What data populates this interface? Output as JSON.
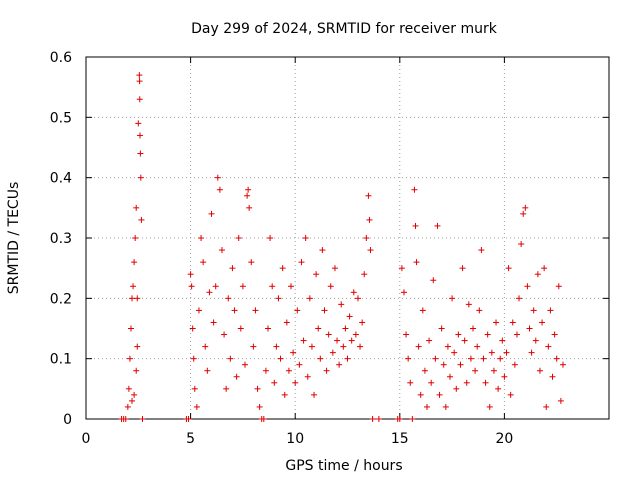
{
  "chart_data": {
    "type": "scatter",
    "title": "Day 299 of 2024, SRMTID for receiver murk",
    "xlabel": "GPS time / hours",
    "ylabel": "SRMTID / TECUs",
    "xlim": [
      0,
      25
    ],
    "ylim": [
      0,
      0.6
    ],
    "xticks": [
      "0",
      "5",
      "10",
      "15",
      "20"
    ],
    "yticks": [
      "0",
      "0.1",
      "0.2",
      "0.3",
      "0.4",
      "0.5",
      "0.6"
    ],
    "grid": true,
    "marker": "plus",
    "color": "#e00000",
    "series": [
      {
        "values": [
          [
            1.7,
            0.0
          ],
          [
            1.8,
            0.0
          ],
          [
            1.9,
            0.0
          ],
          [
            2.0,
            0.02
          ],
          [
            2.05,
            0.05
          ],
          [
            2.1,
            0.1
          ],
          [
            2.15,
            0.15
          ],
          [
            2.2,
            0.2
          ],
          [
            2.25,
            0.22
          ],
          [
            2.3,
            0.26
          ],
          [
            2.35,
            0.3
          ],
          [
            2.4,
            0.35
          ],
          [
            2.45,
            0.2
          ],
          [
            2.5,
            0.49
          ],
          [
            2.55,
            0.57
          ],
          [
            2.56,
            0.56
          ],
          [
            2.57,
            0.53
          ],
          [
            2.58,
            0.47
          ],
          [
            2.6,
            0.44
          ],
          [
            2.62,
            0.4
          ],
          [
            2.65,
            0.33
          ],
          [
            2.45,
            0.12
          ],
          [
            2.3,
            0.04
          ],
          [
            2.4,
            0.08
          ],
          [
            2.7,
            0.0
          ],
          [
            2.2,
            0.03
          ],
          [
            4.8,
            0.0
          ],
          [
            4.9,
            0.0
          ],
          [
            5.0,
            0.24
          ],
          [
            5.05,
            0.22
          ],
          [
            5.1,
            0.15
          ],
          [
            5.15,
            0.1
          ],
          [
            5.2,
            0.05
          ],
          [
            5.3,
            0.02
          ],
          [
            5.4,
            0.18
          ],
          [
            5.5,
            0.3
          ],
          [
            5.6,
            0.26
          ],
          [
            5.7,
            0.12
          ],
          [
            5.8,
            0.08
          ],
          [
            5.9,
            0.21
          ],
          [
            6.0,
            0.34
          ],
          [
            6.1,
            0.16
          ],
          [
            6.2,
            0.22
          ],
          [
            6.3,
            0.4
          ],
          [
            6.4,
            0.38
          ],
          [
            6.5,
            0.28
          ],
          [
            6.6,
            0.14
          ],
          [
            6.7,
            0.05
          ],
          [
            6.8,
            0.2
          ],
          [
            6.9,
            0.1
          ],
          [
            7.0,
            0.25
          ],
          [
            7.1,
            0.18
          ],
          [
            7.2,
            0.07
          ],
          [
            7.3,
            0.3
          ],
          [
            7.4,
            0.15
          ],
          [
            7.5,
            0.22
          ],
          [
            7.6,
            0.09
          ],
          [
            7.7,
            0.37
          ],
          [
            7.75,
            0.38
          ],
          [
            7.8,
            0.35
          ],
          [
            7.9,
            0.26
          ],
          [
            8.0,
            0.12
          ],
          [
            8.1,
            0.18
          ],
          [
            8.2,
            0.05
          ],
          [
            8.3,
            0.02
          ],
          [
            8.4,
            0.0
          ],
          [
            8.5,
            0.0
          ],
          [
            8.6,
            0.08
          ],
          [
            8.7,
            0.15
          ],
          [
            8.8,
            0.3
          ],
          [
            8.9,
            0.22
          ],
          [
            9.0,
            0.06
          ],
          [
            9.1,
            0.12
          ],
          [
            9.2,
            0.2
          ],
          [
            9.3,
            0.1
          ],
          [
            9.4,
            0.25
          ],
          [
            9.5,
            0.04
          ],
          [
            9.6,
            0.16
          ],
          [
            9.7,
            0.08
          ],
          [
            9.8,
            0.22
          ],
          [
            9.9,
            0.11
          ],
          [
            10.0,
            0.06
          ],
          [
            10.1,
            0.18
          ],
          [
            10.2,
            0.09
          ],
          [
            10.3,
            0.26
          ],
          [
            10.4,
            0.13
          ],
          [
            10.5,
            0.3
          ],
          [
            10.6,
            0.07
          ],
          [
            10.7,
            0.2
          ],
          [
            10.8,
            0.12
          ],
          [
            10.9,
            0.04
          ],
          [
            11.0,
            0.24
          ],
          [
            11.1,
            0.15
          ],
          [
            11.2,
            0.1
          ],
          [
            11.3,
            0.28
          ],
          [
            11.4,
            0.18
          ],
          [
            11.5,
            0.08
          ],
          [
            11.6,
            0.14
          ],
          [
            11.7,
            0.22
          ],
          [
            11.8,
            0.11
          ],
          [
            11.9,
            0.25
          ],
          [
            12.0,
            0.13
          ],
          [
            12.1,
            0.09
          ],
          [
            12.2,
            0.19
          ],
          [
            12.3,
            0.12
          ],
          [
            12.4,
            0.15
          ],
          [
            12.5,
            0.1
          ],
          [
            12.6,
            0.17
          ],
          [
            12.7,
            0.13
          ],
          [
            12.8,
            0.21
          ],
          [
            12.9,
            0.14
          ],
          [
            13.0,
            0.2
          ],
          [
            13.1,
            0.12
          ],
          [
            13.2,
            0.16
          ],
          [
            13.3,
            0.24
          ],
          [
            13.4,
            0.3
          ],
          [
            13.5,
            0.37
          ],
          [
            13.55,
            0.33
          ],
          [
            13.6,
            0.28
          ],
          [
            13.7,
            0.0
          ],
          [
            14.0,
            0.0
          ],
          [
            14.9,
            0.0
          ],
          [
            15.0,
            0.0
          ],
          [
            15.1,
            0.25
          ],
          [
            15.2,
            0.21
          ],
          [
            15.3,
            0.14
          ],
          [
            15.4,
            0.1
          ],
          [
            15.5,
            0.06
          ],
          [
            15.6,
            0.0
          ],
          [
            15.7,
            0.38
          ],
          [
            15.75,
            0.32
          ],
          [
            15.8,
            0.26
          ],
          [
            15.9,
            0.12
          ],
          [
            16.0,
            0.04
          ],
          [
            16.1,
            0.18
          ],
          [
            16.2,
            0.08
          ],
          [
            16.3,
            0.02
          ],
          [
            16.4,
            0.13
          ],
          [
            16.5,
            0.06
          ],
          [
            16.6,
            0.23
          ],
          [
            16.7,
            0.1
          ],
          [
            16.8,
            0.32
          ],
          [
            16.9,
            0.04
          ],
          [
            17.0,
            0.15
          ],
          [
            17.1,
            0.09
          ],
          [
            17.2,
            0.02
          ],
          [
            17.3,
            0.12
          ],
          [
            17.4,
            0.07
          ],
          [
            17.5,
            0.2
          ],
          [
            17.6,
            0.11
          ],
          [
            17.7,
            0.05
          ],
          [
            17.8,
            0.14
          ],
          [
            17.9,
            0.09
          ],
          [
            18.0,
            0.25
          ],
          [
            18.1,
            0.13
          ],
          [
            18.2,
            0.06
          ],
          [
            18.3,
            0.19
          ],
          [
            18.4,
            0.1
          ],
          [
            18.5,
            0.15
          ],
          [
            18.6,
            0.08
          ],
          [
            18.7,
            0.12
          ],
          [
            18.8,
            0.18
          ],
          [
            18.9,
            0.28
          ],
          [
            19.0,
            0.1
          ],
          [
            19.1,
            0.06
          ],
          [
            19.2,
            0.14
          ],
          [
            19.3,
            0.02
          ],
          [
            19.4,
            0.11
          ],
          [
            19.5,
            0.08
          ],
          [
            19.6,
            0.16
          ],
          [
            19.7,
            0.05
          ],
          [
            19.8,
            0.1
          ],
          [
            19.9,
            0.13
          ],
          [
            20.0,
            0.07
          ],
          [
            20.1,
            0.11
          ],
          [
            20.2,
            0.25
          ],
          [
            20.3,
            0.04
          ],
          [
            20.4,
            0.16
          ],
          [
            20.5,
            0.09
          ],
          [
            20.6,
            0.14
          ],
          [
            20.7,
            0.2
          ],
          [
            20.8,
            0.29
          ],
          [
            20.9,
            0.34
          ],
          [
            21.0,
            0.35
          ],
          [
            21.1,
            0.22
          ],
          [
            21.2,
            0.15
          ],
          [
            21.3,
            0.11
          ],
          [
            21.4,
            0.18
          ],
          [
            21.5,
            0.13
          ],
          [
            21.6,
            0.24
          ],
          [
            21.7,
            0.08
          ],
          [
            21.8,
            0.16
          ],
          [
            21.9,
            0.25
          ],
          [
            22.0,
            0.02
          ],
          [
            22.1,
            0.12
          ],
          [
            22.2,
            0.18
          ],
          [
            22.3,
            0.07
          ],
          [
            22.4,
            0.14
          ],
          [
            22.5,
            0.1
          ],
          [
            22.6,
            0.22
          ],
          [
            22.7,
            0.03
          ],
          [
            22.8,
            0.09
          ]
        ]
      }
    ]
  }
}
